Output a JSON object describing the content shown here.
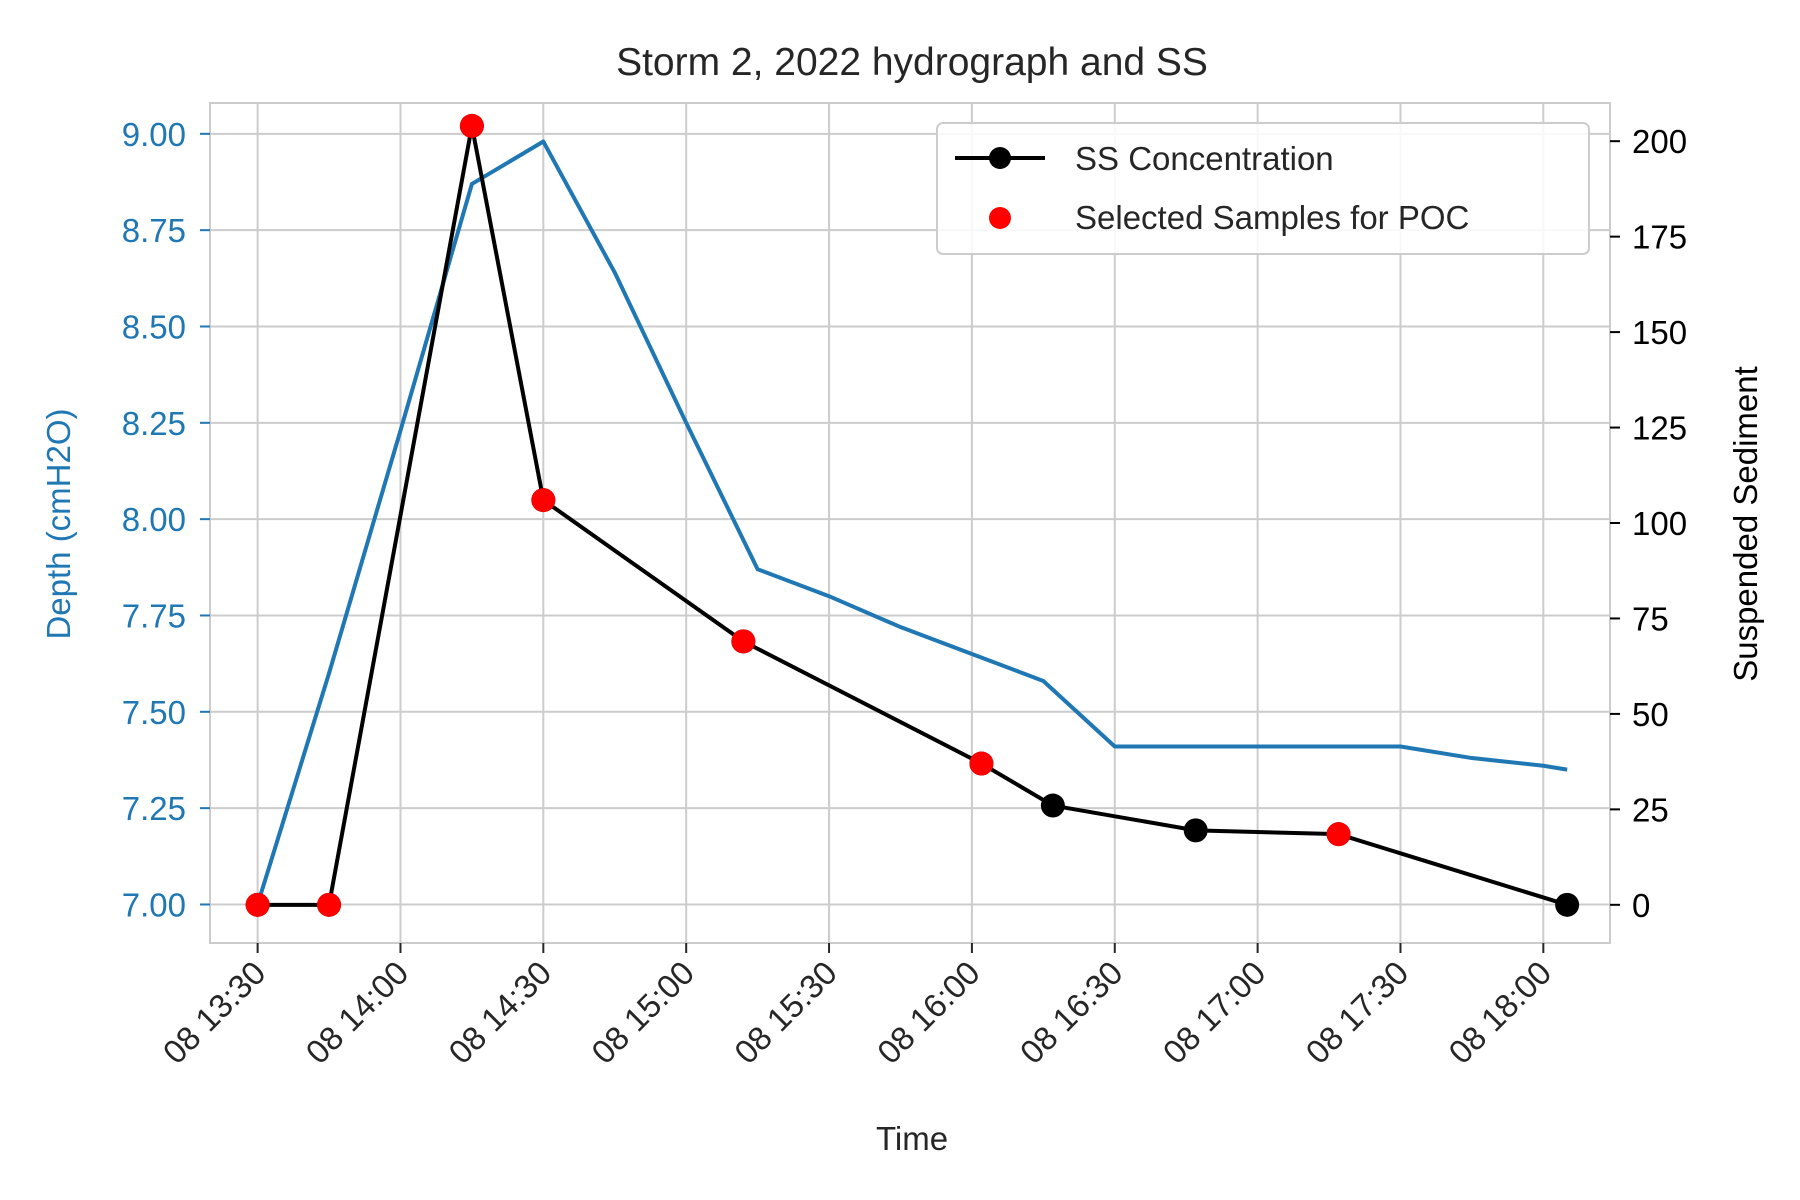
{
  "chart_data": {
    "type": "line",
    "title": "Storm 2, 2022 hydrograph and SS",
    "xlabel": "Time",
    "ylabel_left": "Depth (cmH2O)",
    "ylabel_right": "Suspended Sediment",
    "x_ticks": [
      "08 13:30",
      "08 14:00",
      "08 14:30",
      "08 15:00",
      "08 15:30",
      "08 16:00",
      "08 16:30",
      "08 17:00",
      "08 17:30",
      "08 18:00"
    ],
    "y_left_ticks": [
      "7.00",
      "7.25",
      "7.50",
      "7.75",
      "8.00",
      "8.25",
      "8.50",
      "8.75",
      "9.00"
    ],
    "y_right_ticks": [
      "0",
      "25",
      "50",
      "75",
      "100",
      "125",
      "150",
      "175",
      "200"
    ],
    "xlim": [
      "08 13:20",
      "08 18:14"
    ],
    "ylim_left": [
      6.9,
      9.08
    ],
    "ylim_right": [
      -10,
      210
    ],
    "grid": true,
    "legend_position": "upper right",
    "colors": {
      "depth": "#1f77b4",
      "ss": "#000000",
      "selected": "#ff0000",
      "grid": "#cccccc",
      "frame": "#cccccc"
    },
    "series": [
      {
        "name": "",
        "axis": "left",
        "x": [
          "08 13:30",
          "08 13:45",
          "08 14:00",
          "08 14:15",
          "08 14:30",
          "08 14:45",
          "08 15:00",
          "08 15:15",
          "08 15:30",
          "08 15:45",
          "08 16:00",
          "08 16:15",
          "08 16:30",
          "08 16:45",
          "08 17:00",
          "08 17:15",
          "08 17:30",
          "08 17:45",
          "08 18:00",
          "08 18:05"
        ],
        "values": [
          7.0,
          7.6,
          8.23,
          8.87,
          8.98,
          8.64,
          8.25,
          7.87,
          7.8,
          7.72,
          7.65,
          7.58,
          7.41,
          7.41,
          7.41,
          7.41,
          7.41,
          7.38,
          7.36,
          7.35
        ]
      },
      {
        "name": "SS Concentration",
        "axis": "right",
        "x": [
          "08 13:30",
          "08 13:45",
          "08 14:15",
          "08 14:30",
          "08 15:12",
          "08 16:02",
          "08 16:17",
          "08 16:47",
          "08 17:17",
          "08 18:05"
        ],
        "values": [
          0,
          0,
          204,
          106,
          69,
          37,
          26,
          19.5,
          18.5,
          0
        ],
        "selected_for_poc": [
          true,
          true,
          true,
          true,
          true,
          true,
          false,
          false,
          true,
          false
        ]
      },
      {
        "name": "Selected Samples for POC",
        "axis": "right",
        "x": [
          "08 13:30",
          "08 13:45",
          "08 14:15",
          "08 14:30",
          "08 15:12",
          "08 16:02",
          "08 17:17"
        ],
        "values": [
          0,
          0,
          204,
          106,
          69,
          37,
          18.5
        ]
      }
    ]
  }
}
